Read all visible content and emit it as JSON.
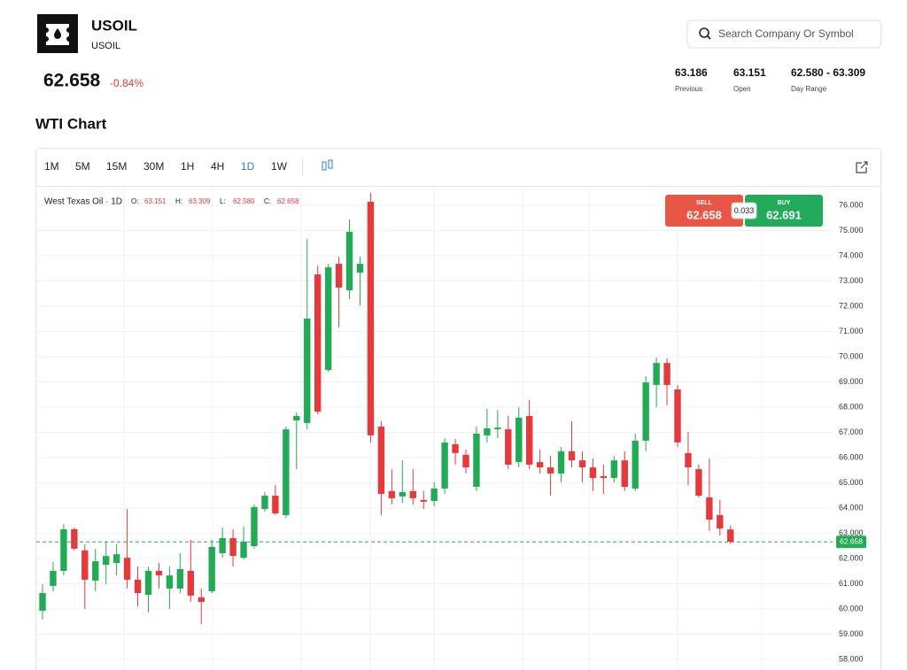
{
  "header": {
    "symbol": "USOIL",
    "subtitle": "USOIL",
    "price": "62.658",
    "change": "-0.84%",
    "search_placeholder": "Search Company Or Symbol",
    "stats": [
      {
        "value": "63.186",
        "label": "Previous"
      },
      {
        "value": "63.151",
        "label": "Open"
      },
      {
        "value": "62.580 - 63.309",
        "label": "Day Range"
      }
    ]
  },
  "section_title": "WTI Chart",
  "toolbar": {
    "timeframes": [
      "1M",
      "5M",
      "15M",
      "30M",
      "1H",
      "4H",
      "1D",
      "1W"
    ]
  },
  "legend": {
    "title": "West Texas Oil · 1D",
    "labels": [
      "O:",
      "H:",
      "L:",
      "C:"
    ],
    "values": [
      "63.151",
      "63.309",
      "62.580",
      "62.658"
    ]
  },
  "trade": {
    "sell_label": "SELL",
    "sell_price": "62.658",
    "spread": "0.033",
    "buy_label": "BUY",
    "buy_price": "62.691"
  },
  "chart_data": {
    "type": "candlestick",
    "up_color": "#22ab54",
    "down_color": "#e5393b",
    "grid": true,
    "ylim": [
      57.58,
      76.7
    ],
    "yticks": [
      {
        "value": 58,
        "label": "58.000"
      },
      {
        "value": 59,
        "label": "59.000"
      },
      {
        "value": 60,
        "label": "60.000"
      },
      {
        "value": 61,
        "label": "61.000"
      },
      {
        "value": 62,
        "label": "62.000"
      },
      {
        "value": 63,
        "label": "63.000"
      },
      {
        "value": 64,
        "label": "64.000"
      },
      {
        "value": 65,
        "label": "65.000"
      },
      {
        "value": 66,
        "label": "66.000"
      },
      {
        "value": 67,
        "label": "67.000"
      },
      {
        "value": 68,
        "label": "68.000"
      },
      {
        "value": 69,
        "label": "69.000"
      },
      {
        "value": 70,
        "label": "70.000"
      },
      {
        "value": 71,
        "label": "71.000"
      },
      {
        "value": 72,
        "label": "72.000"
      },
      {
        "value": 73,
        "label": "73.000"
      },
      {
        "value": 74,
        "label": "74.000"
      },
      {
        "value": 75,
        "label": "75.000"
      },
      {
        "value": 76,
        "label": "76.000"
      }
    ],
    "last_price": 62.658,
    "open": [
      59.93,
      60.91,
      61.51,
      63.16,
      62.32,
      61.12,
      61.75,
      61.82,
      62.03,
      61.16,
      60.56,
      61.51,
      60.81,
      60.81,
      61.51,
      60.46,
      60.7,
      62.21,
      62.81,
      62.03,
      62.49,
      63.96,
      64.49,
      63.72,
      67.47,
      67.37,
      73.26,
      69.47,
      73.68,
      72.63,
      73.33,
      76.14,
      67.23,
      64.67,
      64.46,
      64.67,
      64.32,
      64.28,
      64.77,
      66.53,
      66.11,
      64.84,
      66.88,
      67.12,
      67.12,
      65.82,
      67.65,
      65.82,
      65.61,
      65.37,
      66.25,
      65.89,
      65.61,
      65.26,
      65.19,
      65.89,
      64.77,
      66.67,
      68.88,
      69.75,
      68.7,
      66.18,
      65.54,
      64.42,
      63.72,
      63.151
    ],
    "high": [
      60.98,
      61.86,
      63.37,
      63.23,
      62.56,
      62.39,
      62.67,
      62.56,
      63.96,
      61.68,
      61.68,
      61.82,
      61.68,
      62.21,
      62.74,
      60.81,
      62.74,
      63.23,
      63.16,
      63.26,
      64.14,
      64.63,
      64.91,
      67.23,
      67.79,
      74.67,
      73.61,
      73.68,
      73.96,
      75.44,
      73.96,
      76.49,
      67.44,
      65.54,
      65.89,
      65.54,
      64.67,
      65.02,
      66.77,
      66.74,
      66.32,
      67.23,
      67.93,
      67.89,
      67.65,
      68.0,
      68.28,
      66.32,
      66.07,
      66.42,
      67.44,
      66.25,
      65.96,
      65.72,
      66.07,
      66.25,
      66.95,
      69.23,
      69.96,
      69.93,
      68.88,
      67.02,
      65.72,
      65.96,
      64.32,
      63.309
    ],
    "low": [
      59.58,
      60.7,
      61.33,
      62.32,
      60.0,
      60.7,
      60.98,
      61.33,
      60.81,
      60.1,
      59.86,
      60.81,
      60.0,
      60.63,
      60.28,
      59.4,
      60.63,
      62.03,
      61.68,
      61.96,
      62.39,
      63.86,
      63.72,
      63.61,
      65.54,
      67.12,
      67.72,
      69.4,
      71.16,
      72.28,
      72.04,
      66.6,
      63.72,
      64.14,
      64.21,
      64.14,
      63.96,
      64.07,
      64.56,
      65.72,
      65.37,
      64.67,
      66.6,
      66.77,
      65.54,
      65.61,
      65.54,
      65.37,
      64.49,
      65.02,
      65.61,
      65.02,
      64.67,
      64.56,
      65.02,
      64.67,
      64.67,
      66.25,
      68.0,
      68.07,
      66.42,
      64.91,
      64.42,
      63.09,
      62.91,
      62.58
    ],
    "close": [
      60.63,
      61.51,
      63.16,
      62.39,
      61.16,
      61.89,
      62.1,
      62.17,
      61.16,
      60.63,
      61.51,
      61.33,
      61.33,
      61.58,
      60.53,
      60.28,
      62.46,
      62.81,
      62.1,
      62.67,
      64.04,
      64.49,
      63.79,
      67.12,
      67.65,
      71.51,
      67.82,
      73.54,
      72.74,
      74.95,
      73.68,
      66.88,
      64.56,
      64.39,
      64.63,
      64.39,
      64.25,
      64.77,
      66.6,
      66.18,
      65.61,
      66.95,
      67.16,
      67.19,
      65.72,
      67.58,
      65.72,
      65.61,
      65.37,
      66.25,
      65.89,
      65.61,
      65.19,
      65.19,
      65.89,
      64.84,
      66.67,
      68.98,
      69.75,
      68.88,
      66.6,
      65.61,
      64.49,
      63.54,
      63.186,
      62.658
    ]
  }
}
